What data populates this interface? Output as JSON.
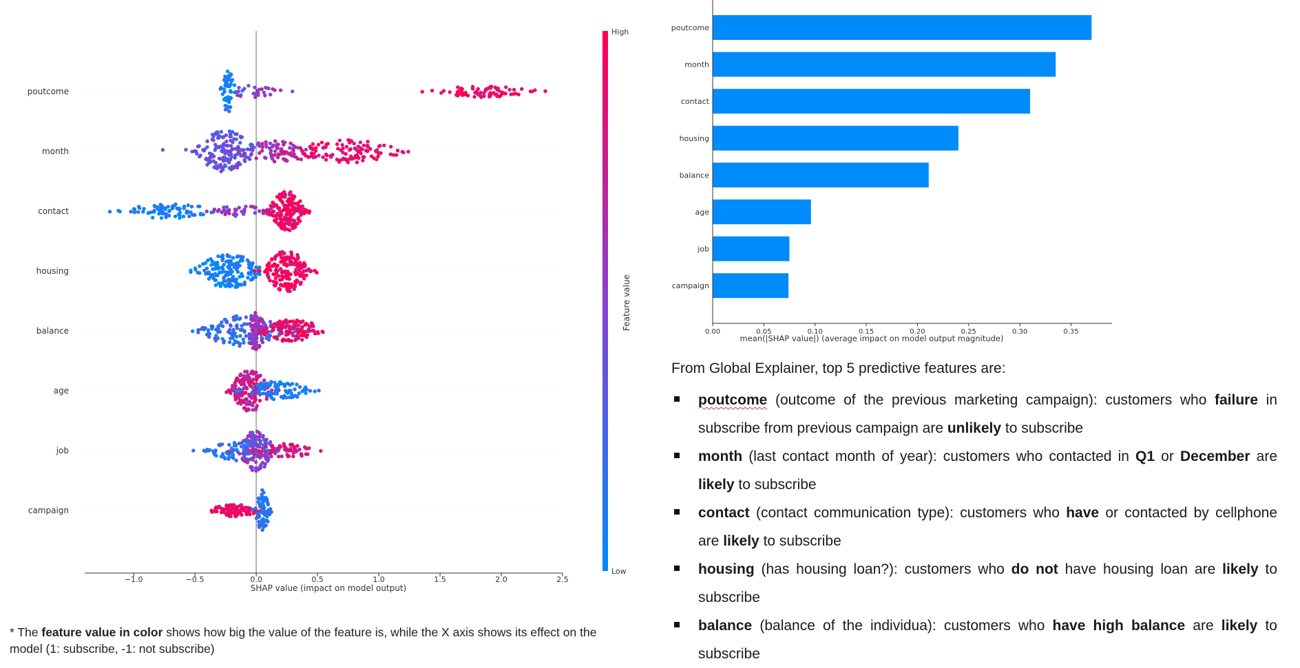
{
  "chart_data": [
    {
      "type": "scatter",
      "subtype": "beeswarm",
      "features": [
        "poutcome",
        "month",
        "contact",
        "housing",
        "balance",
        "age",
        "job",
        "campaign"
      ],
      "xlabel": "SHAP value (impact on model output)",
      "xlim": [
        -1.4,
        2.5
      ],
      "xticks": [
        -1.0,
        -0.5,
        0.0,
        0.5,
        1.0,
        1.5,
        2.0,
        2.5
      ],
      "xtick_labels": [
        "−1.0",
        "−0.5",
        "0.0",
        "0.5",
        "1.0",
        "1.5",
        "2.0",
        "2.5"
      ],
      "colorbar": {
        "label": "Feature value",
        "high_label": "High",
        "low_label": "Low",
        "low_color": "#008bfb",
        "high_color": "#ff0052"
      },
      "clusters": {
        "poutcome": [
          {
            "center": -0.23,
            "spread": 0.03,
            "n": 55,
            "color": 0.05,
            "height": 1.0
          },
          {
            "center": 0.0,
            "spread": 0.12,
            "n": 28,
            "color": 0.5,
            "height": 0.3
          },
          {
            "center": 1.85,
            "spread": 0.22,
            "n": 80,
            "color": 0.95,
            "height": 0.28
          }
        ],
        "month": [
          {
            "center": -0.25,
            "spread": 0.12,
            "n": 160,
            "color": 0.35,
            "height": 1.0
          },
          {
            "center": 0.2,
            "spread": 0.2,
            "n": 80,
            "color": 0.6,
            "height": 0.5
          },
          {
            "center": 0.75,
            "spread": 0.22,
            "n": 110,
            "color": 0.9,
            "height": 0.55
          }
        ],
        "contact": [
          {
            "center": -0.7,
            "spread": 0.2,
            "n": 80,
            "color": 0.05,
            "height": 0.35
          },
          {
            "center": -0.1,
            "spread": 0.15,
            "n": 45,
            "color": 0.55,
            "height": 0.25
          },
          {
            "center": 0.25,
            "spread": 0.07,
            "n": 170,
            "color": 0.95,
            "height": 1.0
          }
        ],
        "housing": [
          {
            "center": -0.22,
            "spread": 0.14,
            "n": 170,
            "color": 0.05,
            "height": 0.8
          },
          {
            "center": 0.25,
            "spread": 0.09,
            "n": 180,
            "color": 0.95,
            "height": 1.0
          }
        ],
        "balance": [
          {
            "center": -0.1,
            "spread": 0.18,
            "n": 150,
            "color": 0.2,
            "height": 0.75
          },
          {
            "center": 0.0,
            "spread": 0.04,
            "n": 70,
            "color": 0.6,
            "height": 1.0
          },
          {
            "center": 0.3,
            "spread": 0.13,
            "n": 120,
            "color": 0.9,
            "height": 0.55
          }
        ],
        "age": [
          {
            "center": -0.05,
            "spread": 0.08,
            "n": 170,
            "color": 0.75,
            "height": 1.0
          },
          {
            "center": 0.18,
            "spread": 0.13,
            "n": 90,
            "color": 0.08,
            "height": 0.45
          }
        ],
        "job": [
          {
            "center": -0.1,
            "spread": 0.15,
            "n": 110,
            "color": 0.1,
            "height": 0.5
          },
          {
            "center": 0.0,
            "spread": 0.07,
            "n": 110,
            "color": 0.5,
            "height": 1.0
          },
          {
            "center": 0.25,
            "spread": 0.12,
            "n": 60,
            "color": 0.8,
            "height": 0.35
          }
        ],
        "campaign": [
          {
            "center": -0.18,
            "spread": 0.1,
            "n": 100,
            "color": 0.95,
            "height": 0.3
          },
          {
            "center": 0.05,
            "spread": 0.03,
            "n": 80,
            "color": 0.1,
            "height": 1.0
          }
        ]
      }
    },
    {
      "type": "bar",
      "orientation": "horizontal",
      "categories": [
        "poutcome",
        "month",
        "contact",
        "housing",
        "balance",
        "age",
        "job",
        "campaign"
      ],
      "values": [
        0.37,
        0.335,
        0.31,
        0.24,
        0.211,
        0.096,
        0.075,
        0.074
      ],
      "xlabel": "mean(|SHAP value|) (average impact on model output magnitude)",
      "xlim": [
        0,
        0.39
      ],
      "xticks": [
        0.0,
        0.05,
        0.1,
        0.15,
        0.2,
        0.25,
        0.3,
        0.35
      ],
      "xtick_labels": [
        "0.00",
        "0.05",
        "0.10",
        "0.15",
        "0.20",
        "0.25",
        "0.30",
        "0.35"
      ],
      "bar_color": "#008bfb"
    }
  ],
  "footnote": {
    "prefix": "* The ",
    "bold": "feature value in color",
    "rest": " shows how big the value of the feature is, while the X axis shows its effect on the model (1: subscribe, -1: not subscribe)"
  },
  "explanation": {
    "intro": "From Global Explainer, top 5 predictive features are:",
    "items": [
      {
        "segments": [
          {
            "t": "poutcome",
            "b": true,
            "wavy": true
          },
          {
            "t": " (outcome of the previous marketing campaign): customers who "
          },
          {
            "t": "failure",
            "b": true
          },
          {
            "t": " in subscribe from previous campaign are "
          },
          {
            "t": "unlikely",
            "b": true
          },
          {
            "t": " to subscribe"
          }
        ]
      },
      {
        "segments": [
          {
            "t": "month",
            "b": true
          },
          {
            "t": " (last contact month of year): customers who contacted in "
          },
          {
            "t": "Q1",
            "b": true
          },
          {
            "t": " or "
          },
          {
            "t": "December",
            "b": true
          },
          {
            "t": " are "
          },
          {
            "t": "likely",
            "b": true
          },
          {
            "t": " to subscribe"
          }
        ]
      },
      {
        "segments": [
          {
            "t": "contact",
            "b": true
          },
          {
            "t": " (contact communication type): customers who "
          },
          {
            "t": "have",
            "b": true
          },
          {
            "t": " or contacted by cellphone are "
          },
          {
            "t": "likely",
            "b": true
          },
          {
            "t": " to subscribe"
          }
        ]
      },
      {
        "segments": [
          {
            "t": "housing",
            "b": true
          },
          {
            "t": " (has housing loan?): customers who "
          },
          {
            "t": "do not",
            "b": true
          },
          {
            "t": " have housing loan are "
          },
          {
            "t": "likely",
            "b": true
          },
          {
            "t": " to subscribe"
          }
        ]
      },
      {
        "segments": [
          {
            "t": "balance",
            "b": true
          },
          {
            "t": " (balance of the individua): customers who "
          },
          {
            "t": "have high balance",
            "b": true
          },
          {
            "t": " are "
          },
          {
            "t": "likely",
            "b": true
          },
          {
            "t": " to subscribe"
          }
        ]
      }
    ]
  }
}
